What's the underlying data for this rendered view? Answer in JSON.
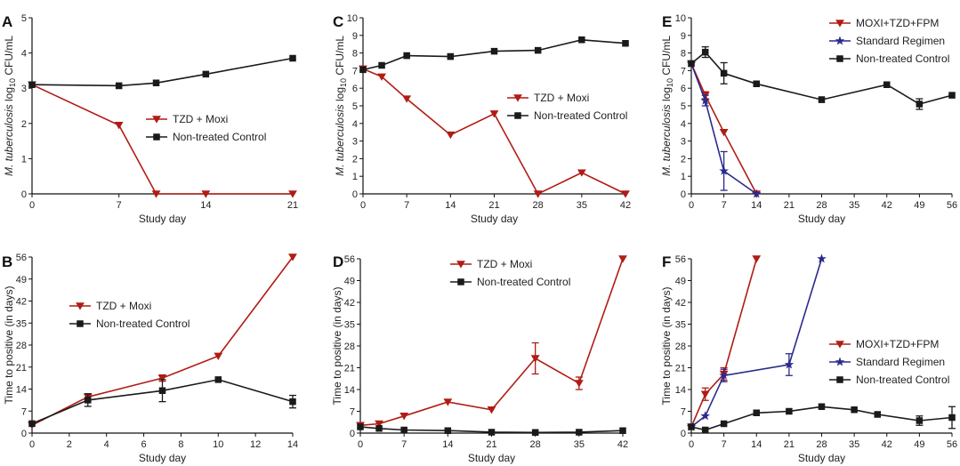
{
  "colors": {
    "red": "#b01c14",
    "black": "#1a1a1a",
    "blue": "#2a2a8c"
  },
  "chart_data": [
    {
      "panel": "A",
      "type": "line",
      "xlabel": "Study day",
      "ylabel": "M. tuberculosis log10 CFU/mL",
      "xlim": [
        0,
        21
      ],
      "ylim": [
        0,
        5
      ],
      "xticks": [
        0,
        7,
        14,
        21
      ],
      "yticks": [
        0,
        1,
        2,
        3,
        4,
        5
      ],
      "legend": "center-right",
      "series": [
        {
          "name": "TZD + Moxi",
          "color": "#b01c14",
          "marker": "tri-down",
          "x": [
            0,
            7,
            10,
            14,
            21
          ],
          "y": [
            3.1,
            1.95,
            0,
            0,
            0
          ]
        },
        {
          "name": "Non-treated Control",
          "color": "#1a1a1a",
          "marker": "square",
          "x": [
            0,
            7,
            10,
            14,
            21
          ],
          "y": [
            3.1,
            3.07,
            3.15,
            3.4,
            3.85
          ]
        }
      ]
    },
    {
      "panel": "B",
      "type": "line",
      "xlabel": "Study day",
      "ylabel": "Time to positive (in days)",
      "xlim": [
        0,
        14
      ],
      "ylim": [
        0,
        56
      ],
      "xticks": [
        0,
        2,
        4,
        6,
        8,
        10,
        12,
        14
      ],
      "yticks": [
        0,
        7,
        14,
        21,
        28,
        35,
        42,
        49,
        56
      ],
      "legend": "center-left",
      "series": [
        {
          "name": "TZD + Moxi",
          "color": "#b01c14",
          "marker": "tri-down",
          "x": [
            0,
            3,
            7,
            10,
            14
          ],
          "y": [
            2.5,
            11.5,
            17.5,
            24.5,
            56
          ],
          "err": [
            0,
            1,
            1,
            0,
            0
          ]
        },
        {
          "name": "Non-treated Control",
          "color": "#1a1a1a",
          "marker": "square",
          "x": [
            0,
            3,
            7,
            10,
            14
          ],
          "y": [
            3,
            10.5,
            13.5,
            17,
            10
          ],
          "err": [
            0,
            2,
            3.5,
            0,
            2
          ]
        }
      ]
    },
    {
      "panel": "C",
      "type": "line",
      "xlabel": "Study day",
      "ylabel": "M. tuberculosis log10 CFU/mL",
      "xlim": [
        0,
        42
      ],
      "ylim": [
        0,
        10
      ],
      "xticks": [
        0,
        7,
        14,
        21,
        28,
        35,
        42
      ],
      "yticks": [
        0,
        1,
        2,
        3,
        4,
        5,
        6,
        7,
        8,
        9,
        10
      ],
      "legend": "center-right",
      "series": [
        {
          "name": "TZD + Moxi",
          "color": "#b01c14",
          "marker": "tri-down",
          "x": [
            0,
            3,
            7,
            14,
            21,
            28,
            35,
            42
          ],
          "y": [
            7.1,
            6.65,
            5.4,
            3.35,
            4.55,
            0,
            1.2,
            0
          ]
        },
        {
          "name": "Non-treated Control",
          "color": "#1a1a1a",
          "marker": "square",
          "x": [
            0,
            3,
            7,
            14,
            21,
            28,
            35,
            42
          ],
          "y": [
            7.05,
            7.3,
            7.85,
            7.8,
            8.1,
            8.15,
            8.75,
            8.55
          ]
        }
      ]
    },
    {
      "panel": "D",
      "type": "line",
      "xlabel": "Study day",
      "ylabel": "Time to positive (in days)",
      "xlim": [
        0,
        42
      ],
      "ylim": [
        0,
        56
      ],
      "xticks": [
        0,
        7,
        14,
        21,
        28,
        35,
        42
      ],
      "yticks": [
        0,
        7,
        14,
        21,
        28,
        35,
        42,
        49,
        56
      ],
      "legend": "top-center",
      "series": [
        {
          "name": "TZD + Moxi",
          "color": "#b01c14",
          "marker": "tri-down",
          "x": [
            0,
            3,
            7,
            14,
            21,
            28,
            35,
            42
          ],
          "y": [
            2.5,
            3,
            5.5,
            10,
            7.5,
            24,
            16,
            56
          ],
          "err": [
            0,
            0,
            0,
            0,
            0,
            5,
            2,
            0
          ]
        },
        {
          "name": "Non-treated Control",
          "color": "#1a1a1a",
          "marker": "square",
          "x": [
            0,
            3,
            7,
            14,
            21,
            28,
            35,
            42
          ],
          "y": [
            2,
            1.5,
            1,
            0.8,
            0.3,
            0.2,
            0.3,
            0.8
          ],
          "err": [
            0,
            0,
            0,
            0,
            0,
            0,
            0,
            0
          ]
        }
      ]
    },
    {
      "panel": "E",
      "type": "line",
      "xlabel": "Study day",
      "ylabel": "M. tuberculosis log10 CFU/mL",
      "xlim": [
        0,
        56
      ],
      "ylim": [
        0,
        10
      ],
      "xticks": [
        0,
        7,
        14,
        21,
        28,
        35,
        42,
        49,
        56
      ],
      "yticks": [
        0,
        1,
        2,
        3,
        4,
        5,
        6,
        7,
        8,
        9,
        10
      ],
      "legend": "top-right",
      "series": [
        {
          "name": "MOXI+TZD+FPM",
          "color": "#b01c14",
          "marker": "tri-down",
          "x": [
            0,
            3,
            7,
            14
          ],
          "y": [
            7.4,
            5.6,
            3.5,
            0
          ],
          "err": [
            0,
            0.2,
            0,
            0
          ]
        },
        {
          "name": "Standard Regimen",
          "color": "#2a2a8c",
          "marker": "star",
          "x": [
            0,
            3,
            7,
            14
          ],
          "y": [
            7.4,
            5.3,
            1.3,
            0
          ],
          "err": [
            0,
            0.3,
            1.1,
            0
          ]
        },
        {
          "name": "Non-treated Control",
          "color": "#1a1a1a",
          "marker": "square",
          "x": [
            0,
            3,
            7,
            14,
            28,
            42,
            49,
            56
          ],
          "y": [
            7.4,
            8.05,
            6.85,
            6.25,
            5.35,
            6.2,
            5.1,
            5.6
          ],
          "err": [
            0,
            0.3,
            0.6,
            0,
            0,
            0,
            0.3,
            0
          ]
        }
      ]
    },
    {
      "panel": "F",
      "type": "line",
      "xlabel": "Study day",
      "ylabel": "Time to positive (in days)",
      "xlim": [
        0,
        56
      ],
      "ylim": [
        0,
        56
      ],
      "xticks": [
        0,
        7,
        14,
        21,
        28,
        35,
        42,
        49,
        56
      ],
      "yticks": [
        0,
        7,
        14,
        21,
        28,
        35,
        42,
        49,
        56
      ],
      "legend": "center-right",
      "series": [
        {
          "name": "MOXI+TZD+FPM",
          "color": "#b01c14",
          "marker": "tri-down",
          "x": [
            0,
            3,
            7,
            14
          ],
          "y": [
            2,
            12.5,
            19,
            56
          ],
          "err": [
            0,
            2,
            2,
            0
          ]
        },
        {
          "name": "Standard Regimen",
          "color": "#2a2a8c",
          "marker": "star",
          "x": [
            0,
            3,
            7,
            21,
            28
          ],
          "y": [
            2,
            5.5,
            18.5,
            22,
            56
          ],
          "err": [
            0,
            0,
            2,
            3.5,
            0
          ]
        },
        {
          "name": "Non-treated Control",
          "color": "#1a1a1a",
          "marker": "square",
          "x": [
            0,
            3,
            7,
            14,
            21,
            28,
            35,
            40,
            49,
            56
          ],
          "y": [
            2,
            1,
            3,
            6.5,
            7,
            8.5,
            7.5,
            6,
            4,
            5
          ],
          "err": [
            0,
            0,
            0,
            0,
            0,
            0,
            0,
            0,
            1.5,
            3.5
          ]
        }
      ]
    }
  ]
}
